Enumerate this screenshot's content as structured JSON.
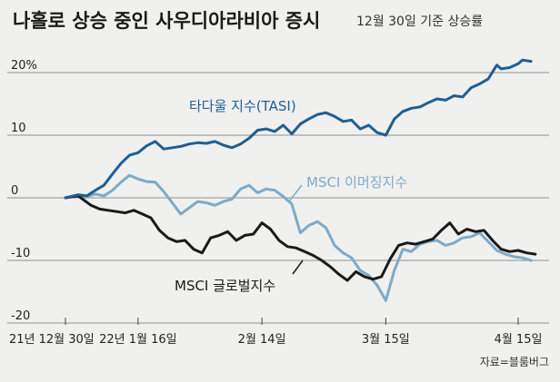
{
  "chart_data": {
    "type": "line",
    "title": "나홀로 상승 중인 사우디아라비아 증시",
    "subtitle": "12월 30일 기준 상승률",
    "source": "자료=블룸버그",
    "y_unit": "%",
    "ylim": [
      -20,
      25
    ],
    "yticks": [
      {
        "value": 20,
        "label": "20%"
      },
      {
        "value": 10,
        "label": "10"
      },
      {
        "value": 0,
        "label": "0"
      },
      {
        "value": -10,
        "label": "-10"
      },
      {
        "value": -20,
        "label": "-20"
      }
    ],
    "xlim": [
      "2021-12-30",
      "2022-04-20"
    ],
    "xticks": [
      {
        "date": "2021-12-30",
        "label": "21년 12월 30일"
      },
      {
        "date": "2022-01-16",
        "label": "22년 1월 16일"
      },
      {
        "date": "2022-02-14",
        "label": "2월 14일"
      },
      {
        "date": "2022-03-15",
        "label": "3월 15일"
      },
      {
        "date": "2022-04-15",
        "label": "4월 15일"
      }
    ],
    "grid": "horizontal",
    "series": [
      {
        "name": "타다울 지수(TASI)",
        "color": "#1f5f92",
        "points": [
          [
            "2021-12-30",
            0
          ],
          [
            "2022-01-02",
            0.5
          ],
          [
            "2022-01-04",
            0.3
          ],
          [
            "2022-01-06",
            1.2
          ],
          [
            "2022-01-08",
            2.0
          ],
          [
            "2022-01-10",
            3.8
          ],
          [
            "2022-01-12",
            5.5
          ],
          [
            "2022-01-14",
            6.8
          ],
          [
            "2022-01-16",
            7.2
          ],
          [
            "2022-01-18",
            8.3
          ],
          [
            "2022-01-20",
            9.0
          ],
          [
            "2022-01-22",
            7.8
          ],
          [
            "2022-01-24",
            8.0
          ],
          [
            "2022-01-26",
            8.2
          ],
          [
            "2022-01-28",
            8.6
          ],
          [
            "2022-01-30",
            8.8
          ],
          [
            "2022-02-01",
            8.7
          ],
          [
            "2022-02-03",
            9.0
          ],
          [
            "2022-02-05",
            8.4
          ],
          [
            "2022-02-07",
            8.0
          ],
          [
            "2022-02-09",
            8.6
          ],
          [
            "2022-02-11",
            9.5
          ],
          [
            "2022-02-13",
            10.8
          ],
          [
            "2022-02-15",
            11.0
          ],
          [
            "2022-02-17",
            10.6
          ],
          [
            "2022-02-19",
            11.6
          ],
          [
            "2022-02-21",
            10.2
          ],
          [
            "2022-02-23",
            11.8
          ],
          [
            "2022-02-25",
            12.6
          ],
          [
            "2022-02-27",
            13.3
          ],
          [
            "2022-03-01",
            13.6
          ],
          [
            "2022-03-03",
            13.0
          ],
          [
            "2022-03-05",
            12.2
          ],
          [
            "2022-03-07",
            12.4
          ],
          [
            "2022-03-09",
            11.0
          ],
          [
            "2022-03-11",
            11.6
          ],
          [
            "2022-03-13",
            10.4
          ],
          [
            "2022-03-15",
            10.0
          ],
          [
            "2022-03-17",
            12.6
          ],
          [
            "2022-03-19",
            13.8
          ],
          [
            "2022-03-21",
            14.3
          ],
          [
            "2022-03-23",
            14.5
          ],
          [
            "2022-03-25",
            15.2
          ],
          [
            "2022-03-27",
            15.8
          ],
          [
            "2022-03-29",
            15.6
          ],
          [
            "2022-03-31",
            16.3
          ],
          [
            "2022-04-02",
            16.1
          ],
          [
            "2022-04-04",
            17.6
          ],
          [
            "2022-04-06",
            18.2
          ],
          [
            "2022-04-08",
            19.0
          ],
          [
            "2022-04-10",
            21.2
          ],
          [
            "2022-04-11",
            20.6
          ],
          [
            "2022-04-13",
            20.8
          ],
          [
            "2022-04-15",
            21.4
          ],
          [
            "2022-04-16",
            22.0
          ],
          [
            "2022-04-18",
            21.8
          ]
        ]
      },
      {
        "name": "MSCI 이머징지수",
        "color": "#7faac6",
        "points": [
          [
            "2021-12-30",
            0
          ],
          [
            "2022-01-02",
            0.4
          ],
          [
            "2022-01-04",
            0.2
          ],
          [
            "2022-01-06",
            0.6
          ],
          [
            "2022-01-08",
            0.3
          ],
          [
            "2022-01-10",
            1.2
          ],
          [
            "2022-01-12",
            2.5
          ],
          [
            "2022-01-14",
            3.6
          ],
          [
            "2022-01-16",
            3.0
          ],
          [
            "2022-01-18",
            2.6
          ],
          [
            "2022-01-20",
            2.5
          ],
          [
            "2022-01-22",
            1.0
          ],
          [
            "2022-01-24",
            -0.8
          ],
          [
            "2022-01-26",
            -2.6
          ],
          [
            "2022-01-28",
            -1.6
          ],
          [
            "2022-01-30",
            -0.6
          ],
          [
            "2022-02-01",
            -0.8
          ],
          [
            "2022-02-03",
            -1.2
          ],
          [
            "2022-02-05",
            -0.6
          ],
          [
            "2022-02-07",
            -0.2
          ],
          [
            "2022-02-09",
            1.4
          ],
          [
            "2022-02-11",
            2.0
          ],
          [
            "2022-02-13",
            0.8
          ],
          [
            "2022-02-15",
            1.4
          ],
          [
            "2022-02-17",
            1.2
          ],
          [
            "2022-02-19",
            0.2
          ],
          [
            "2022-02-21",
            -1.0
          ],
          [
            "2022-02-23",
            -5.6
          ],
          [
            "2022-02-25",
            -4.4
          ],
          [
            "2022-02-27",
            -3.8
          ],
          [
            "2022-03-01",
            -4.8
          ],
          [
            "2022-03-03",
            -7.6
          ],
          [
            "2022-03-05",
            -8.8
          ],
          [
            "2022-03-07",
            -9.6
          ],
          [
            "2022-03-09",
            -11.6
          ],
          [
            "2022-03-11",
            -12.4
          ],
          [
            "2022-03-13",
            -14.0
          ],
          [
            "2022-03-15",
            -16.4
          ],
          [
            "2022-03-17",
            -11.6
          ],
          [
            "2022-03-19",
            -8.2
          ],
          [
            "2022-03-21",
            -8.6
          ],
          [
            "2022-03-23",
            -7.4
          ],
          [
            "2022-03-25",
            -7.0
          ],
          [
            "2022-03-27",
            -6.8
          ],
          [
            "2022-03-29",
            -7.6
          ],
          [
            "2022-03-31",
            -7.2
          ],
          [
            "2022-04-02",
            -6.4
          ],
          [
            "2022-04-04",
            -6.2
          ],
          [
            "2022-04-06",
            -5.6
          ],
          [
            "2022-04-08",
            -7.0
          ],
          [
            "2022-04-10",
            -8.4
          ],
          [
            "2022-04-12",
            -9.0
          ],
          [
            "2022-04-14",
            -9.4
          ],
          [
            "2022-04-16",
            -9.6
          ],
          [
            "2022-04-18",
            -10.0
          ]
        ]
      },
      {
        "name": "MSCI 글로벌지수",
        "color": "#1a1a1a",
        "points": [
          [
            "2021-12-30",
            0
          ],
          [
            "2022-01-02",
            0.3
          ],
          [
            "2022-01-03",
            -0.2
          ],
          [
            "2022-01-05",
            -1.2
          ],
          [
            "2022-01-07",
            -1.8
          ],
          [
            "2022-01-09",
            -2.0
          ],
          [
            "2022-01-11",
            -2.2
          ],
          [
            "2022-01-13",
            -2.4
          ],
          [
            "2022-01-15",
            -2.0
          ],
          [
            "2022-01-17",
            -2.6
          ],
          [
            "2022-01-19",
            -3.2
          ],
          [
            "2022-01-21",
            -5.2
          ],
          [
            "2022-01-23",
            -6.4
          ],
          [
            "2022-01-25",
            -7.0
          ],
          [
            "2022-01-27",
            -6.8
          ],
          [
            "2022-01-29",
            -8.2
          ],
          [
            "2022-01-31",
            -8.8
          ],
          [
            "2022-02-02",
            -6.4
          ],
          [
            "2022-02-04",
            -6.0
          ],
          [
            "2022-02-06",
            -5.4
          ],
          [
            "2022-02-08",
            -6.8
          ],
          [
            "2022-02-10",
            -6.0
          ],
          [
            "2022-02-12",
            -5.8
          ],
          [
            "2022-02-14",
            -4.0
          ],
          [
            "2022-02-16",
            -5.0
          ],
          [
            "2022-02-18",
            -6.8
          ],
          [
            "2022-02-20",
            -7.8
          ],
          [
            "2022-02-22",
            -8.0
          ],
          [
            "2022-02-24",
            -8.6
          ],
          [
            "2022-02-26",
            -9.2
          ],
          [
            "2022-02-28",
            -10.0
          ],
          [
            "2022-03-02",
            -11.0
          ],
          [
            "2022-03-04",
            -12.2
          ],
          [
            "2022-03-06",
            -13.2
          ],
          [
            "2022-03-08",
            -11.8
          ],
          [
            "2022-03-10",
            -12.6
          ],
          [
            "2022-03-12",
            -13.0
          ],
          [
            "2022-03-14",
            -12.6
          ],
          [
            "2022-03-16",
            -9.8
          ],
          [
            "2022-03-18",
            -7.6
          ],
          [
            "2022-03-20",
            -7.2
          ],
          [
            "2022-03-22",
            -7.4
          ],
          [
            "2022-03-24",
            -7.0
          ],
          [
            "2022-03-26",
            -6.6
          ],
          [
            "2022-03-28",
            -5.2
          ],
          [
            "2022-03-30",
            -4.0
          ],
          [
            "2022-04-01",
            -5.8
          ],
          [
            "2022-04-03",
            -5.0
          ],
          [
            "2022-04-05",
            -5.4
          ],
          [
            "2022-04-07",
            -5.2
          ],
          [
            "2022-04-09",
            -6.8
          ],
          [
            "2022-04-11",
            -8.2
          ],
          [
            "2022-04-13",
            -8.6
          ],
          [
            "2022-04-15",
            -8.4
          ],
          [
            "2022-04-17",
            -8.8
          ],
          [
            "2022-04-19",
            -9.0
          ]
        ]
      }
    ]
  }
}
